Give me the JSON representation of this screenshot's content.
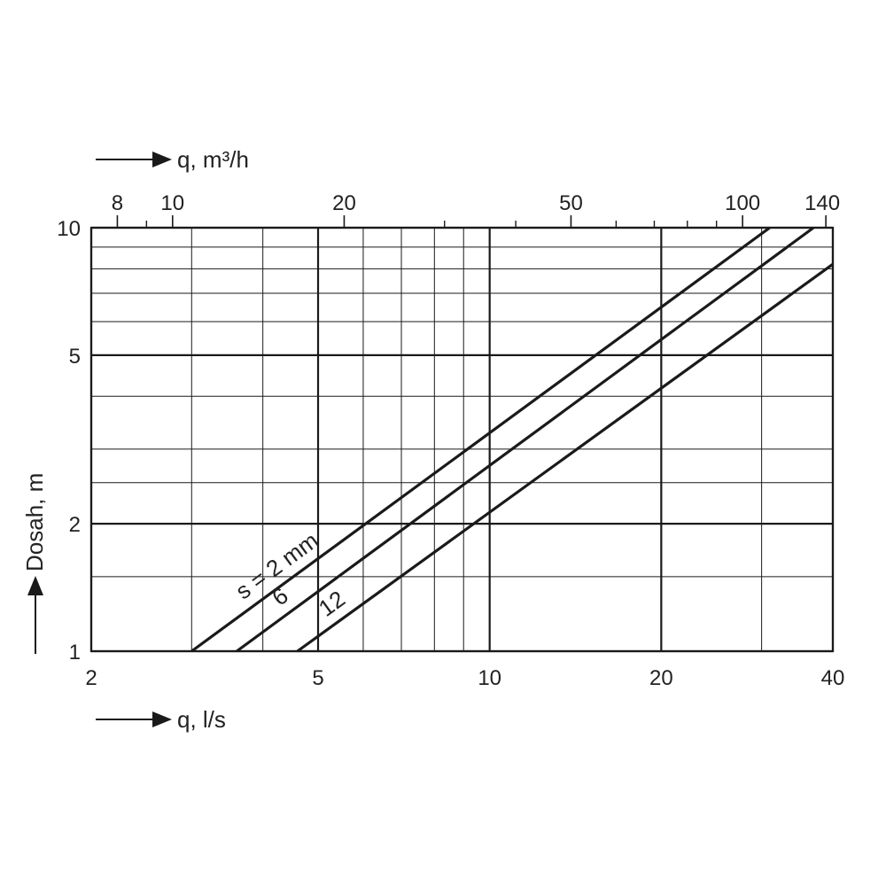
{
  "chart_data": {
    "type": "line",
    "scale": {
      "x": "log",
      "y": "log"
    },
    "xlim": [
      2,
      40
    ],
    "ylim": [
      1,
      10
    ],
    "xlabel": "q, l/s",
    "ylabel": "Dosah, m",
    "x2label": "q, m³/h",
    "x_ticks": [
      2,
      5,
      10,
      20,
      40
    ],
    "x_tick_labels": [
      "2",
      "5",
      "10",
      "20",
      "40"
    ],
    "y_ticks": [
      1,
      2,
      5,
      10
    ],
    "y_tick_labels": [
      "1",
      "2",
      "5",
      "10"
    ],
    "x2_ticks": [
      8,
      10,
      20,
      50,
      100,
      140
    ],
    "x2_tick_labels": [
      "8",
      "10",
      "20",
      "50",
      "100",
      "140"
    ],
    "x2_factor": 3.6,
    "grid": true,
    "series": [
      {
        "name": "s = 2 mm",
        "points": [
          [
            3,
            1.0
          ],
          [
            31,
            10.0
          ]
        ]
      },
      {
        "name": "6",
        "points": [
          [
            3.6,
            1.0
          ],
          [
            37,
            10.0
          ]
        ]
      },
      {
        "name": "12",
        "points": [
          [
            4.6,
            1.0
          ],
          [
            40,
            8.2
          ]
        ]
      }
    ]
  },
  "colors": {
    "line": "#1a1a1a",
    "grid": "#1a1a1a",
    "text": "#222222"
  }
}
